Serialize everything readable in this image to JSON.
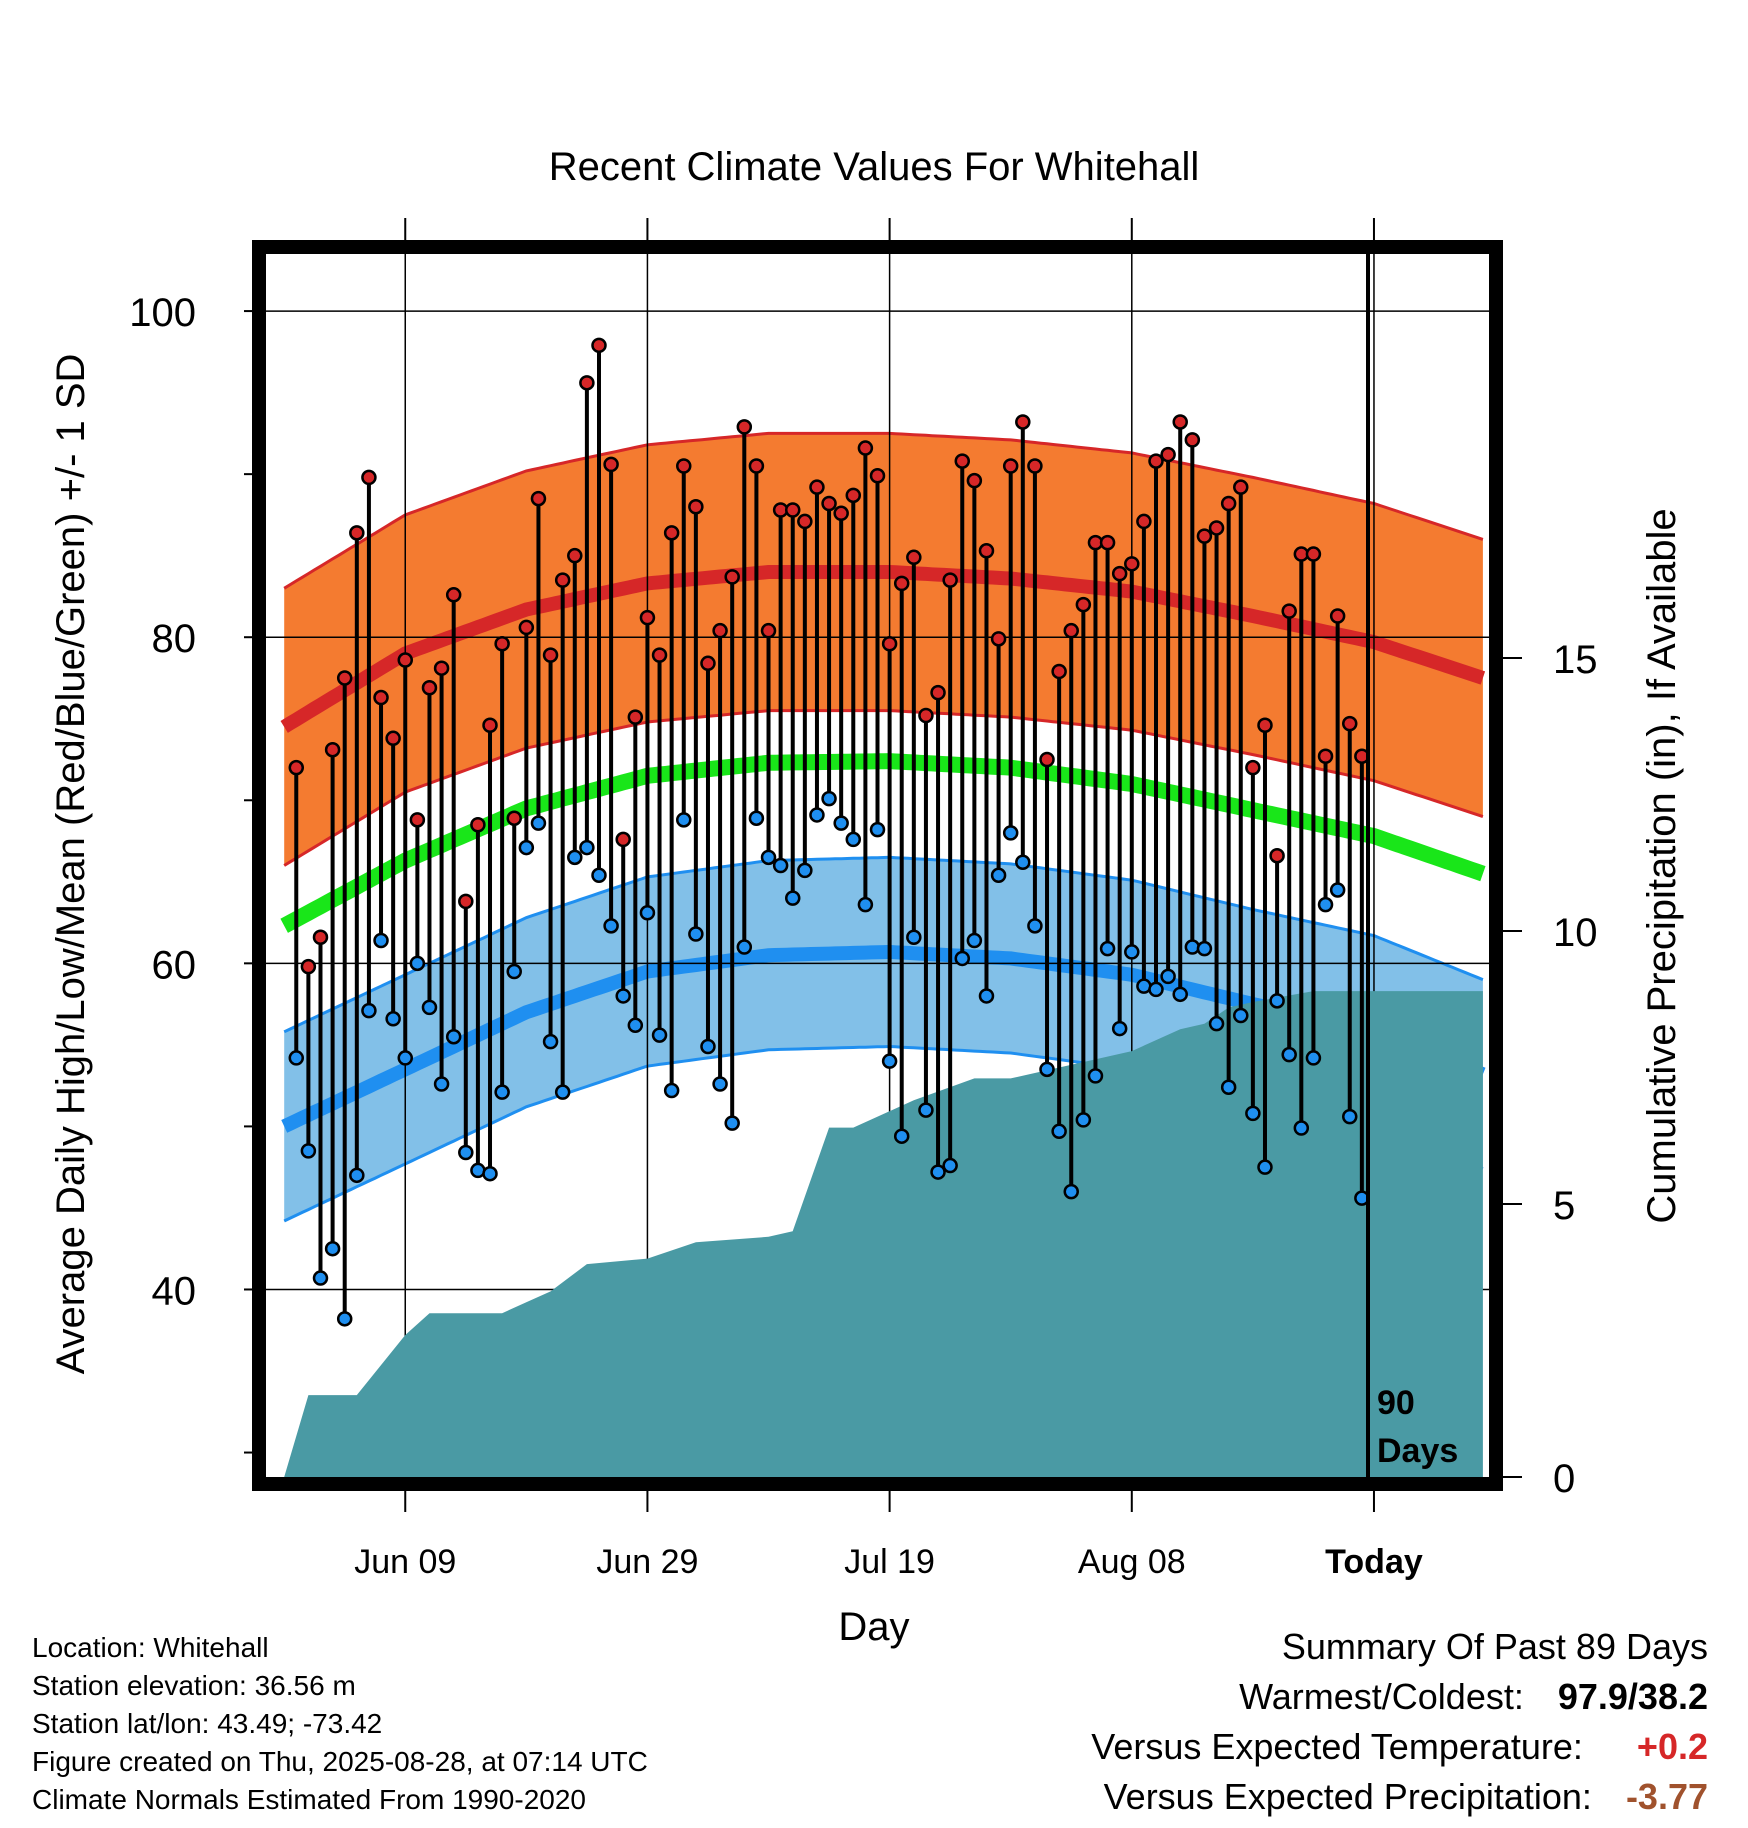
{
  "title": "Recent Climate Values For Whitehall",
  "y_left_label": "Average Daily High/Low/Mean (Red/Blue/Green) +/- 1 SD",
  "y_right_label": "Cumulative Precipitation (in), If Available",
  "x_label": "Day",
  "today_marker": {
    "line1": "90",
    "line2": "Days"
  },
  "info": {
    "location": "Location: Whitehall",
    "elevation": "Station elevation: 36.56 m",
    "latlon": "Station lat/lon: 43.49; -73.42",
    "created": "Figure created on Thu, 2025-08-28, at 07:14 UTC",
    "normals": "Climate Normals Estimated From 1990-2020"
  },
  "summary": {
    "heading": "Summary Of Past 89 Days",
    "warm_cold_label": "Warmest/Coldest:",
    "warm_cold_value": "97.9/38.2",
    "temp_label": "Versus Expected Temperature:",
    "temp_value": "+0.2",
    "precip_label": "Versus Expected Precipitation:",
    "precip_value": "-3.77"
  },
  "colors": {
    "high_band": "#f47b30",
    "high_line": "#d62728",
    "low_band": "#82c0e8",
    "low_line": "#1f8ff0",
    "mean_line": "#19e619",
    "precip": "#4a9aa4",
    "high_dot": "#d62728",
    "low_dot": "#1f8ff0"
  },
  "chart_data": {
    "type": "line",
    "x_ticks": [
      "Jun 09",
      "Jun 29",
      "Jul 19",
      "Aug 08",
      "Today"
    ],
    "x_tick_day": [
      -80,
      -60,
      -40,
      -20,
      0
    ],
    "y_ticks": [
      40,
      60,
      80,
      100
    ],
    "y_minor_ticks": [
      30,
      50,
      70,
      90
    ],
    "ylim": [
      28.5,
      103.5
    ],
    "xlim": [
      -91.5,
      9.5
    ],
    "y2_ticks": [
      0,
      5,
      10,
      15
    ],
    "y2lim": [
      0,
      22.4
    ],
    "normals_day": [
      -90,
      -80,
      -70,
      -60,
      -50,
      -40,
      -30,
      -20,
      -10,
      0,
      9
    ],
    "normal_high": [
      74.5,
      79.0,
      81.7,
      83.3,
      84.0,
      84.0,
      83.6,
      82.8,
      81.3,
      79.7,
      77.5
    ],
    "normal_high_sd": 8.5,
    "normal_low": [
      50.0,
      53.5,
      57.0,
      59.5,
      60.5,
      60.7,
      60.3,
      59.3,
      57.5,
      55.9,
      53.2
    ],
    "normal_low_sd": 5.8,
    "normal_mean": [
      62.3,
      66.3,
      69.5,
      71.5,
      72.3,
      72.4,
      72.0,
      71.0,
      69.4,
      67.8,
      65.5
    ],
    "days_ago": [
      -89,
      -88,
      -87,
      -86,
      -85,
      -84,
      -83,
      -82,
      -81,
      -80,
      -79,
      -78,
      -77,
      -76,
      -75,
      -74,
      -73,
      -72,
      -71,
      -70,
      -69,
      -68,
      -67,
      -66,
      -65,
      -64,
      -63,
      -62,
      -61,
      -60,
      -59,
      -58,
      -57,
      -56,
      -55,
      -54,
      -53,
      -52,
      -51,
      -50,
      -49,
      -48,
      -47,
      -46,
      -45,
      -44,
      -43,
      -42,
      -41,
      -40,
      -39,
      -38,
      -37,
      -36,
      -35,
      -34,
      -33,
      -32,
      -31,
      -30,
      -29,
      -28,
      -27,
      -26,
      -25,
      -24,
      -23,
      -22,
      -21,
      -20,
      -19,
      -18,
      -17,
      -16,
      -15,
      -14,
      -13,
      -12,
      -11,
      -10,
      -9,
      -8,
      -7,
      -6,
      -5,
      -4,
      -3,
      -2,
      -1
    ],
    "daily_high": [
      72.0,
      59.8,
      61.6,
      73.1,
      77.5,
      86.4,
      89.8,
      76.3,
      73.8,
      78.6,
      68.8,
      76.9,
      78.1,
      82.6,
      63.8,
      68.5,
      74.6,
      79.6,
      68.9,
      80.6,
      88.5,
      78.9,
      83.5,
      85.0,
      95.6,
      97.9,
      90.6,
      67.6,
      75.1,
      81.2,
      78.9,
      86.4,
      90.5,
      88.0,
      78.4,
      80.4,
      83.7,
      92.9,
      90.5,
      80.4,
      87.8,
      87.8,
      87.1,
      89.2,
      88.2,
      87.6,
      88.7,
      91.6,
      89.9,
      79.6,
      83.3,
      84.9,
      75.2,
      76.6,
      83.5,
      90.8,
      89.6,
      85.3,
      79.9,
      90.5,
      93.2,
      90.5,
      72.5,
      77.9,
      80.4,
      82.0,
      85.8,
      85.8,
      83.9,
      84.5,
      87.1,
      90.8,
      91.2,
      93.2,
      92.1,
      86.2,
      86.7,
      88.2,
      89.2,
      72.0,
      74.6,
      66.6,
      81.6,
      85.1,
      85.1,
      72.7,
      81.3,
      74.7,
      72.7
    ],
    "daily_low": [
      54.2,
      48.5,
      40.7,
      42.5,
      38.2,
      47.0,
      57.1,
      61.4,
      56.6,
      54.2,
      60.0,
      57.3,
      52.6,
      55.5,
      48.4,
      47.3,
      47.1,
      52.1,
      59.5,
      67.1,
      68.6,
      55.2,
      52.1,
      66.5,
      67.1,
      65.4,
      62.3,
      58.0,
      56.2,
      63.1,
      55.6,
      52.2,
      68.8,
      61.8,
      54.9,
      52.6,
      50.2,
      61.0,
      68.9,
      66.5,
      66.0,
      64.0,
      65.7,
      69.1,
      70.1,
      68.6,
      67.6,
      63.6,
      68.2,
      54.0,
      49.4,
      61.6,
      51.0,
      47.2,
      47.6,
      60.3,
      61.4,
      58.0,
      65.4,
      68.0,
      66.2,
      62.3,
      53.5,
      49.7,
      46.0,
      50.4,
      53.1,
      60.9,
      56.0,
      60.7,
      58.6,
      58.4,
      59.2,
      58.1,
      61.0,
      60.9,
      56.3,
      52.4,
      56.8,
      50.8,
      47.5,
      57.7,
      54.4,
      49.9,
      54.2,
      63.6,
      64.5,
      50.6,
      45.6
    ],
    "precip_days": [
      -90,
      -88,
      -84,
      -80,
      -78,
      -72,
      -70,
      -68,
      -65,
      -60,
      -56,
      -50,
      -48,
      -45,
      -43,
      -38,
      -33,
      -30,
      -20,
      -16,
      -14,
      -12,
      -10,
      -5,
      9
    ],
    "precip_cum": [
      0.0,
      1.5,
      1.5,
      2.6,
      3.0,
      3.0,
      3.2,
      3.4,
      3.9,
      4.0,
      4.3,
      4.4,
      4.5,
      6.4,
      6.4,
      6.9,
      7.3,
      7.3,
      7.8,
      8.2,
      8.3,
      8.6,
      8.7,
      8.9,
      8.9
    ]
  }
}
